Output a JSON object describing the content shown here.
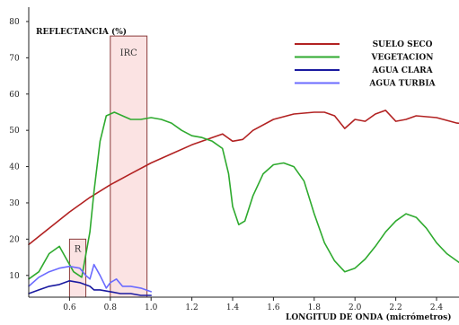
{
  "chart_data": {
    "type": "line",
    "ylabel": "REFLECTANCIA (%)",
    "xlabel": "LONGITUD DE ONDA (micrómetros)",
    "xlim": [
      0.4,
      2.6
    ],
    "ylim": [
      4,
      84
    ],
    "xticks": [
      "0.6",
      "0.8",
      "1.0",
      "1.2",
      "1.4",
      "1.6",
      "1.8",
      "2.0",
      "2.2",
      "2.4"
    ],
    "yticks": [
      "10",
      "20",
      "30",
      "40",
      "50",
      "60",
      "70",
      "80"
    ],
    "bands": [
      {
        "label": "R",
        "x0": 0.6,
        "x1": 0.68,
        "y0": 4,
        "y1": 20
      },
      {
        "label": "IRC",
        "x0": 0.8,
        "x1": 0.98,
        "y0": 4,
        "y1": 76
      }
    ],
    "series": [
      {
        "name": "SUELO SECO",
        "color": "#b22222",
        "x": [
          0.4,
          0.5,
          0.6,
          0.7,
          0.8,
          0.9,
          1.0,
          1.1,
          1.2,
          1.3,
          1.35,
          1.4,
          1.45,
          1.5,
          1.6,
          1.7,
          1.8,
          1.85,
          1.9,
          1.95,
          2.0,
          2.05,
          2.1,
          2.15,
          2.2,
          2.25,
          2.3,
          2.4,
          2.5,
          2.6
        ],
        "y": [
          18.5,
          23,
          27.5,
          31.5,
          35,
          38,
          41,
          43.5,
          46,
          48,
          49,
          47,
          47.5,
          50,
          53,
          54.5,
          55,
          55,
          54,
          50.5,
          53,
          52.5,
          54.5,
          55.5,
          52.5,
          53,
          54,
          53.5,
          52,
          51.5
        ]
      },
      {
        "name": "VEGETACION",
        "color": "#2eaa2e",
        "x": [
          0.4,
          0.45,
          0.5,
          0.55,
          0.58,
          0.62,
          0.66,
          0.7,
          0.72,
          0.75,
          0.78,
          0.82,
          0.86,
          0.9,
          0.95,
          1.0,
          1.05,
          1.1,
          1.15,
          1.2,
          1.25,
          1.3,
          1.35,
          1.38,
          1.4,
          1.43,
          1.46,
          1.5,
          1.55,
          1.6,
          1.65,
          1.7,
          1.75,
          1.8,
          1.85,
          1.9,
          1.95,
          2.0,
          2.05,
          2.1,
          2.15,
          2.2,
          2.25,
          2.3,
          2.35,
          2.4,
          2.45,
          2.5,
          2.55,
          2.6
        ],
        "y": [
          9,
          11,
          16,
          18,
          15,
          11,
          9.5,
          22,
          33,
          47,
          54,
          55,
          54,
          53,
          53,
          53.5,
          53,
          52,
          50,
          48.5,
          48,
          47,
          45,
          38,
          29,
          24,
          25,
          32,
          38,
          40.5,
          41,
          40,
          36,
          27,
          19,
          14,
          11,
          12,
          14.5,
          18,
          22,
          25,
          27,
          26,
          23,
          19,
          16,
          14,
          12,
          11
        ]
      },
      {
        "name": "AGUA CLARA",
        "color": "#1a1aa0",
        "x": [
          0.4,
          0.45,
          0.5,
          0.55,
          0.6,
          0.65,
          0.7,
          0.72,
          0.75,
          0.8,
          0.85,
          0.9,
          0.95,
          1.0
        ],
        "y": [
          5,
          6,
          7,
          7.5,
          8.5,
          8,
          7,
          6,
          6,
          5.5,
          5,
          5,
          4.5,
          4.5
        ]
      },
      {
        "name": "AGUA TURBIA",
        "color": "#6b6bff",
        "x": [
          0.4,
          0.45,
          0.5,
          0.55,
          0.6,
          0.65,
          0.68,
          0.7,
          0.72,
          0.75,
          0.78,
          0.8,
          0.83,
          0.86,
          0.9,
          0.95,
          1.0
        ],
        "y": [
          7,
          9.5,
          11,
          12,
          12.5,
          12,
          10,
          9,
          13,
          10,
          6.5,
          8,
          9,
          7,
          7,
          6.5,
          5.5
        ]
      }
    ],
    "legend_position": "top-right"
  }
}
